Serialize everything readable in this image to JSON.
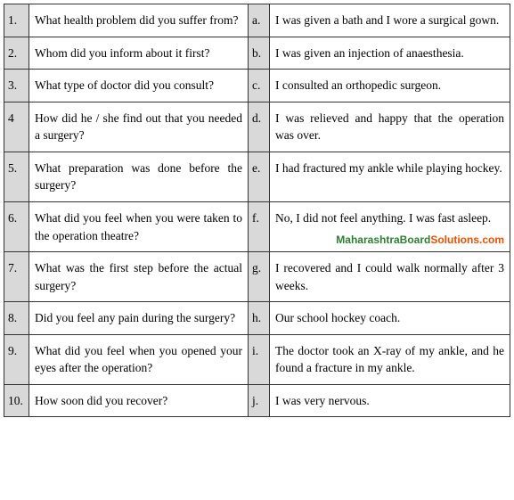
{
  "rows": [
    {
      "num": "1.",
      "question": "What health problem did you suffer from?",
      "letter": "a.",
      "answer": "I was given a bath and I wore a surgical gown."
    },
    {
      "num": "2.",
      "question": "Whom did you inform about it first?",
      "letter": "b.",
      "answer": "I was given an injection of anaesthesia."
    },
    {
      "num": "3.",
      "question": "What type of doctor did you consult?",
      "letter": "c.",
      "answer": "I consulted an orthopedic surgeon."
    },
    {
      "num": "4",
      "question": "How did he / she find out that you needed a surgery?",
      "letter": "d.",
      "answer": "I was relieved and happy that the operation was over."
    },
    {
      "num": "5.",
      "question": "What preparation was done before the surgery?",
      "letter": "e.",
      "answer": "I had fractured my ankle while playing hockey."
    },
    {
      "num": "6.",
      "question": "What did you feel when you were taken to the operation theatre?",
      "letter": "f.",
      "answer": "No, I did not feel anything. I was fast asleep."
    },
    {
      "num": "7.",
      "question": "What was the first step before the actual surgery?",
      "letter": "g.",
      "answer": "I recovered and I could walk normally after 3 weeks."
    },
    {
      "num": "8.",
      "question": "Did you feel any pain during the surgery?",
      "letter": "h.",
      "answer": "Our school hockey coach."
    },
    {
      "num": "9.",
      "question": "What did you feel when you opened your eyes after the operation?",
      "letter": "i.",
      "answer": "The doctor took an X-ray of my ankle, and he found a fracture in my ankle."
    },
    {
      "num": "10.",
      "question": "How soon did you recover?",
      "letter": "j.",
      "answer": "I was very nervous."
    }
  ],
  "watermark": {
    "row_index": 5,
    "part1": "MaharashtraBoard",
    "part2": "Solutions.com"
  }
}
